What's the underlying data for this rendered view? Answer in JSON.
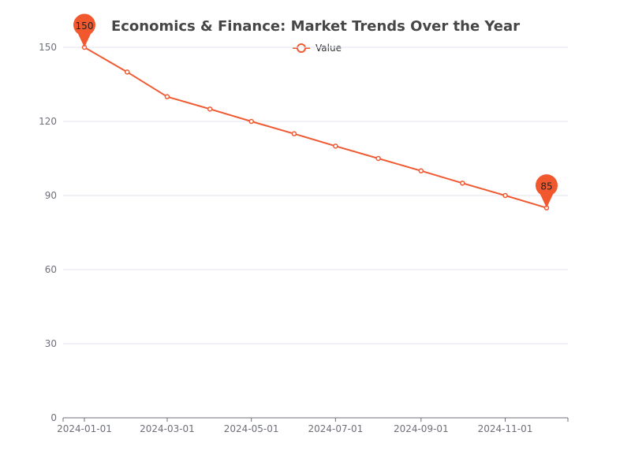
{
  "colors": {
    "series": "#f05a32",
    "pin": "#f2582e",
    "grid": "#e0e6f1",
    "axis": "#6e7079",
    "title": "#464646"
  },
  "chart_data": {
    "type": "line",
    "title": "Economics & Finance: Market Trends Over the Year",
    "legend": {
      "entries": [
        "Value"
      ],
      "placement": "top-center"
    },
    "x": [
      "2024-01-01",
      "2024-02-01",
      "2024-03-01",
      "2024-04-01",
      "2024-05-01",
      "2024-06-01",
      "2024-07-01",
      "2024-08-01",
      "2024-09-01",
      "2024-10-01",
      "2024-11-01",
      "2024-12-01"
    ],
    "x_ticks": [
      "2024-01-01",
      "2024-03-01",
      "2024-05-01",
      "2024-07-01",
      "2024-09-01",
      "2024-11-01"
    ],
    "series": [
      {
        "name": "Value",
        "values": [
          150,
          140,
          130,
          125,
          120,
          115,
          110,
          105,
          100,
          95,
          90,
          85
        ]
      }
    ],
    "ylim": [
      0,
      150
    ],
    "y_ticks": [
      0,
      30,
      60,
      90,
      120,
      150
    ],
    "grid": true,
    "annotations": [
      {
        "type": "max",
        "label": "150",
        "x": "2024-01-01",
        "y": 150
      },
      {
        "type": "min",
        "label": "85",
        "x": "2024-12-01",
        "y": 85
      }
    ]
  }
}
